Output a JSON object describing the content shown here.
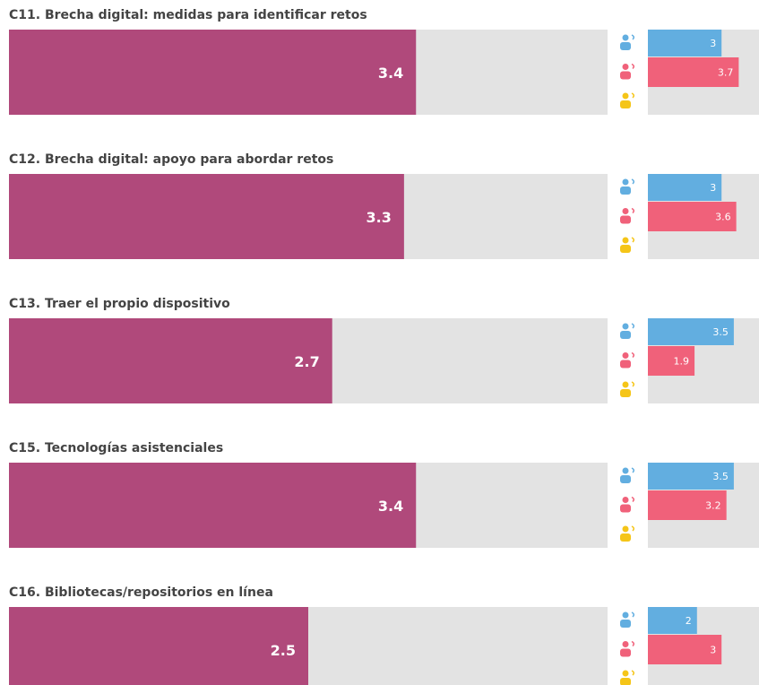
{
  "chart_data": {
    "type": "bar",
    "categories": [
      "C11. Brecha digital: medidas para identificar retos",
      "C12. Brecha digital: apoyo para abordar retos",
      "C13. Traer el propio dispositivo",
      "C15. Tecnologías asistenciales",
      "C16. Bibliotecas/repositorios en línea"
    ],
    "values": [
      3.4,
      3.3,
      2.7,
      3.4,
      2.5
    ],
    "color": "#b0497b",
    "xlim": [
      0,
      5
    ],
    "series": [
      {
        "color": "#62aee0",
        "values": [
          3,
          3,
          3.5,
          3.5,
          2
        ]
      },
      {
        "color": "#f0617a",
        "values": [
          3.7,
          3.6,
          1.9,
          3.2,
          3
        ]
      }
    ]
  }
}
